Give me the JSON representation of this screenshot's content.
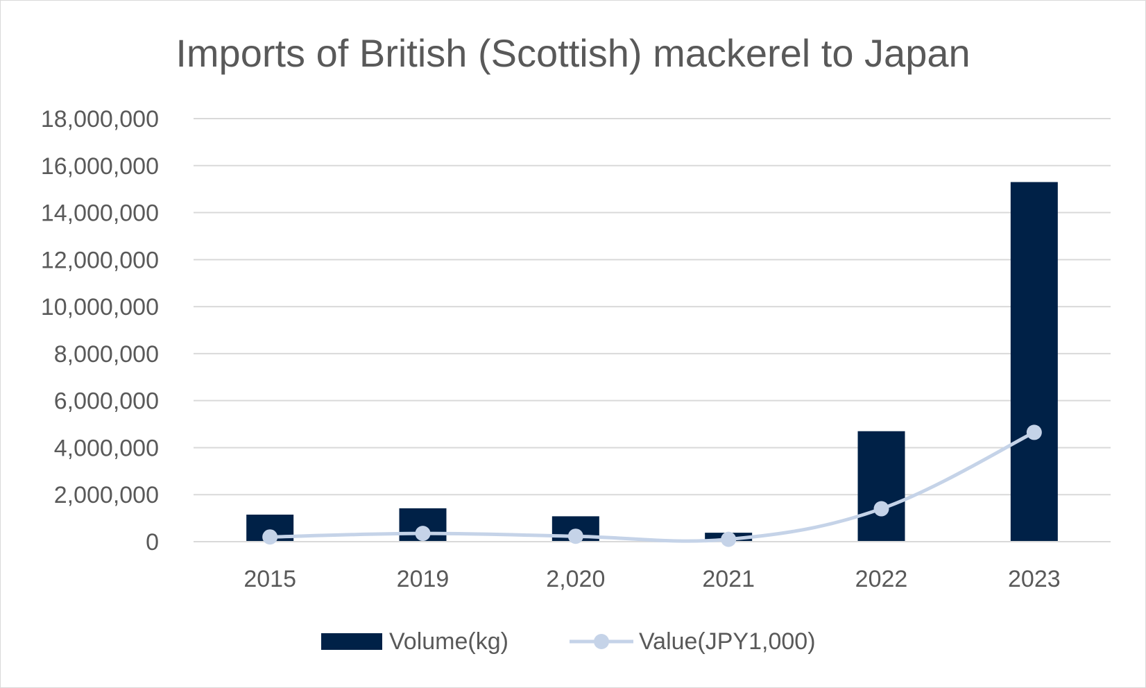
{
  "chart_data": {
    "type": "bar",
    "title": "Imports of British (Scottish) mackerel to Japan",
    "categories": [
      "2015",
      "2019",
      "2,020",
      "2021",
      "2022",
      "2023"
    ],
    "ylim": [
      0,
      18000000
    ],
    "yticks": [
      0,
      2000000,
      4000000,
      6000000,
      8000000,
      10000000,
      12000000,
      14000000,
      16000000,
      18000000
    ],
    "ytick_labels": [
      "0",
      "2,000,000",
      "4,000,000",
      "6,000,000",
      "8,000,000",
      "10,000,000",
      "12,000,000",
      "14,000,000",
      "16,000,000",
      "18,000,000"
    ],
    "grid": true,
    "legend_position": "bottom",
    "series": [
      {
        "name": "Volume(kg)",
        "type": "bar",
        "color": "#002147",
        "values": [
          1150000,
          1420000,
          1080000,
          380000,
          4700000,
          15300000
        ]
      },
      {
        "name": "Value(JPY1,000)",
        "type": "line",
        "smooth": true,
        "color": "#c5d3e8",
        "values": [
          200000,
          350000,
          230000,
          100000,
          1400000,
          4650000
        ]
      }
    ]
  }
}
